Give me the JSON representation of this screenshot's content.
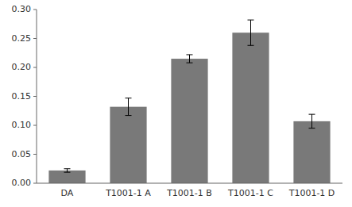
{
  "chart_data": {
    "type": "bar",
    "categories": [
      "DA",
      "T1001-1 A",
      "T1001-1 B",
      "T1001-1 C",
      "T1001-1 D"
    ],
    "values": [
      0.022,
      0.132,
      0.215,
      0.26,
      0.107
    ],
    "errors": [
      0.003,
      0.015,
      0.007,
      0.022,
      0.012
    ],
    "color": "#797979",
    "ylim": [
      0,
      0.3
    ],
    "yticks": [
      {
        "value": 0,
        "label": "0.00"
      },
      0.05,
      {
        "value": 0.1,
        "label": "0.10"
      },
      0.15,
      {
        "value": 0.2,
        "label": "0.20"
      },
      0.25,
      {
        "value": 0.3,
        "label": "0.30"
      }
    ],
    "grid": false
  }
}
